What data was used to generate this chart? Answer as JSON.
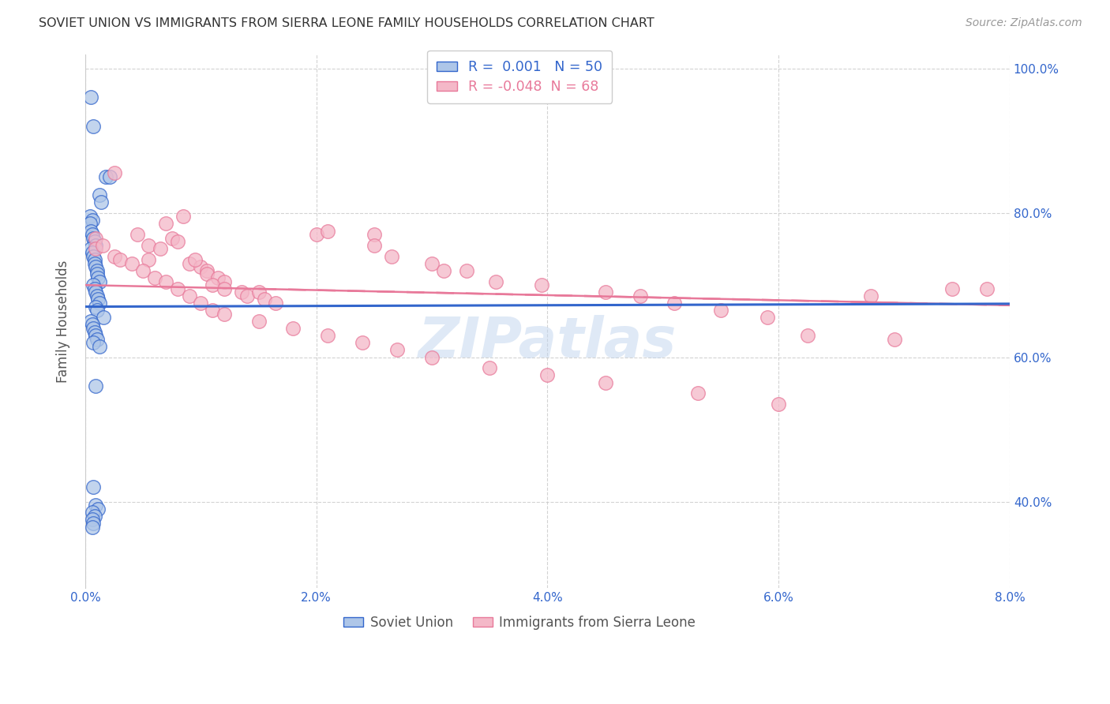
{
  "title": "SOVIET UNION VS IMMIGRANTS FROM SIERRA LEONE FAMILY HOUSEHOLDS CORRELATION CHART",
  "source": "Source: ZipAtlas.com",
  "ylabel": "Family Households",
  "xmin": 0.0,
  "xmax": 8.0,
  "ymin": 28.0,
  "ymax": 102.0,
  "yticks": [
    40.0,
    60.0,
    80.0,
    100.0
  ],
  "ytick_labels": [
    "40.0%",
    "60.0%",
    "80.0%",
    "100.0%"
  ],
  "xtick_labels": [
    "0.0%",
    "2.0%",
    "4.0%",
    "6.0%",
    "8.0%"
  ],
  "xticks": [
    0.0,
    2.0,
    4.0,
    6.0,
    8.0
  ],
  "legend_blue_label": "Soviet Union",
  "legend_pink_label": "Immigrants from Sierra Leone",
  "R_blue": 0.001,
  "N_blue": 50,
  "R_pink": -0.048,
  "N_pink": 68,
  "blue_color": "#aec6e8",
  "pink_color": "#f4b8c8",
  "blue_line_color": "#3366cc",
  "pink_line_color": "#e8799a",
  "watermark": "ZIPatlas",
  "blue_scatter_x": [
    0.05,
    0.07,
    0.18,
    0.21,
    0.12,
    0.14,
    0.04,
    0.06,
    0.04,
    0.05,
    0.06,
    0.07,
    0.08,
    0.09,
    0.05,
    0.06,
    0.07,
    0.08,
    0.08,
    0.09,
    0.1,
    0.1,
    0.11,
    0.12,
    0.07,
    0.08,
    0.09,
    0.1,
    0.11,
    0.12,
    0.09,
    0.1,
    0.16,
    0.05,
    0.06,
    0.07,
    0.08,
    0.09,
    0.1,
    0.07,
    0.12,
    0.09,
    0.07,
    0.09,
    0.11,
    0.06,
    0.08,
    0.06,
    0.07,
    0.06
  ],
  "blue_scatter_y": [
    96.0,
    92.0,
    85.0,
    85.0,
    82.5,
    81.5,
    79.5,
    79.0,
    78.5,
    77.5,
    77.0,
    76.5,
    76.0,
    75.5,
    75.0,
    74.5,
    74.0,
    73.5,
    73.0,
    72.5,
    72.0,
    71.5,
    71.0,
    70.5,
    70.0,
    69.5,
    69.0,
    68.5,
    68.0,
    67.5,
    67.0,
    66.5,
    65.5,
    65.0,
    64.5,
    64.0,
    63.5,
    63.0,
    62.5,
    62.0,
    61.5,
    56.0,
    42.0,
    39.5,
    39.0,
    38.5,
    38.0,
    37.5,
    37.0,
    36.5
  ],
  "pink_scatter_x": [
    0.09,
    0.09,
    0.25,
    0.85,
    0.7,
    0.45,
    0.75,
    0.8,
    0.55,
    0.65,
    0.55,
    0.9,
    1.0,
    0.95,
    1.05,
    1.05,
    1.15,
    1.2,
    1.1,
    1.2,
    1.35,
    1.4,
    1.5,
    1.55,
    1.65,
    2.0,
    2.1,
    2.5,
    2.5,
    2.65,
    3.0,
    3.1,
    3.3,
    3.55,
    3.95,
    4.5,
    4.8,
    5.1,
    5.5,
    5.9,
    6.25,
    7.0,
    7.5,
    0.15,
    0.25,
    0.3,
    0.4,
    0.5,
    0.6,
    0.7,
    0.8,
    0.9,
    1.0,
    1.1,
    1.2,
    1.5,
    1.8,
    2.1,
    2.4,
    2.7,
    3.0,
    3.5,
    4.0,
    4.5,
    5.3,
    6.0,
    6.8,
    7.8
  ],
  "pink_scatter_y": [
    76.5,
    75.0,
    85.5,
    79.5,
    78.5,
    77.0,
    76.5,
    76.0,
    75.5,
    75.0,
    73.5,
    73.0,
    72.5,
    73.5,
    72.0,
    71.5,
    71.0,
    70.5,
    70.0,
    69.5,
    69.0,
    68.5,
    69.0,
    68.0,
    67.5,
    77.0,
    77.5,
    77.0,
    75.5,
    74.0,
    73.0,
    72.0,
    72.0,
    70.5,
    70.0,
    69.0,
    68.5,
    67.5,
    66.5,
    65.5,
    63.0,
    62.5,
    69.5,
    75.5,
    74.0,
    73.5,
    73.0,
    72.0,
    71.0,
    70.5,
    69.5,
    68.5,
    67.5,
    66.5,
    66.0,
    65.0,
    64.0,
    63.0,
    62.0,
    61.0,
    60.0,
    58.5,
    57.5,
    56.5,
    55.0,
    53.5,
    68.5,
    69.5
  ]
}
